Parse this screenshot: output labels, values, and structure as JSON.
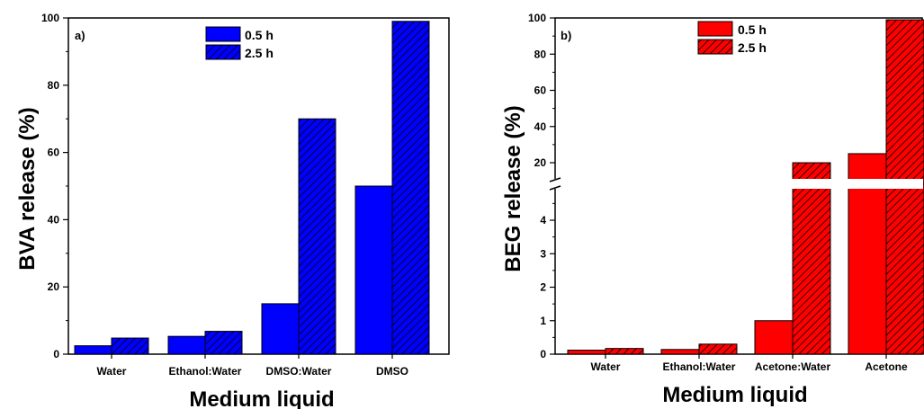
{
  "chart_data": [
    {
      "type": "bar",
      "panel_label": "a)",
      "categories": [
        "Water",
        "Ethanol:Water",
        "DMSO:Water",
        "DMSO"
      ],
      "series": [
        {
          "name": "0.5 h",
          "values": [
            2.5,
            5.3,
            15,
            50
          ]
        },
        {
          "name": "2.5 h",
          "values": [
            4.8,
            6.8,
            70,
            99
          ]
        }
      ],
      "xlabel": "Medium liquid",
      "ylabel": "BVA release  (%)",
      "ylim": [
        0,
        100
      ],
      "yticks": [
        0,
        20,
        40,
        60,
        80,
        100
      ],
      "colors": {
        "series": [
          "#0000ff",
          "#0000ff"
        ],
        "hatched": [
          false,
          true
        ]
      },
      "legend": "top-center",
      "grid": false
    },
    {
      "type": "bar",
      "panel_label": "b)",
      "categories": [
        "Water",
        "Ethanol:Water",
        "Acetone:Water",
        "Acetone"
      ],
      "series": [
        {
          "name": "0.5 h",
          "values": [
            0.12,
            0.14,
            1.0,
            25
          ]
        },
        {
          "name": "2.5 h",
          "values": [
            0.17,
            0.3,
            20,
            99
          ]
        }
      ],
      "xlabel": "Medium liquid",
      "ylabel": "BEG release  (%)",
      "y_axis_break": {
        "lower_range": [
          0,
          5
        ],
        "upper_range": [
          10,
          100
        ]
      },
      "yticks_lower": [
        0,
        1,
        2,
        3,
        4
      ],
      "yticks_upper": [
        20,
        40,
        60,
        80,
        100
      ],
      "colors": {
        "series": [
          "#ff0000",
          "#ff0000"
        ],
        "hatched": [
          false,
          true
        ]
      },
      "legend": "top-center",
      "grid": false
    }
  ]
}
